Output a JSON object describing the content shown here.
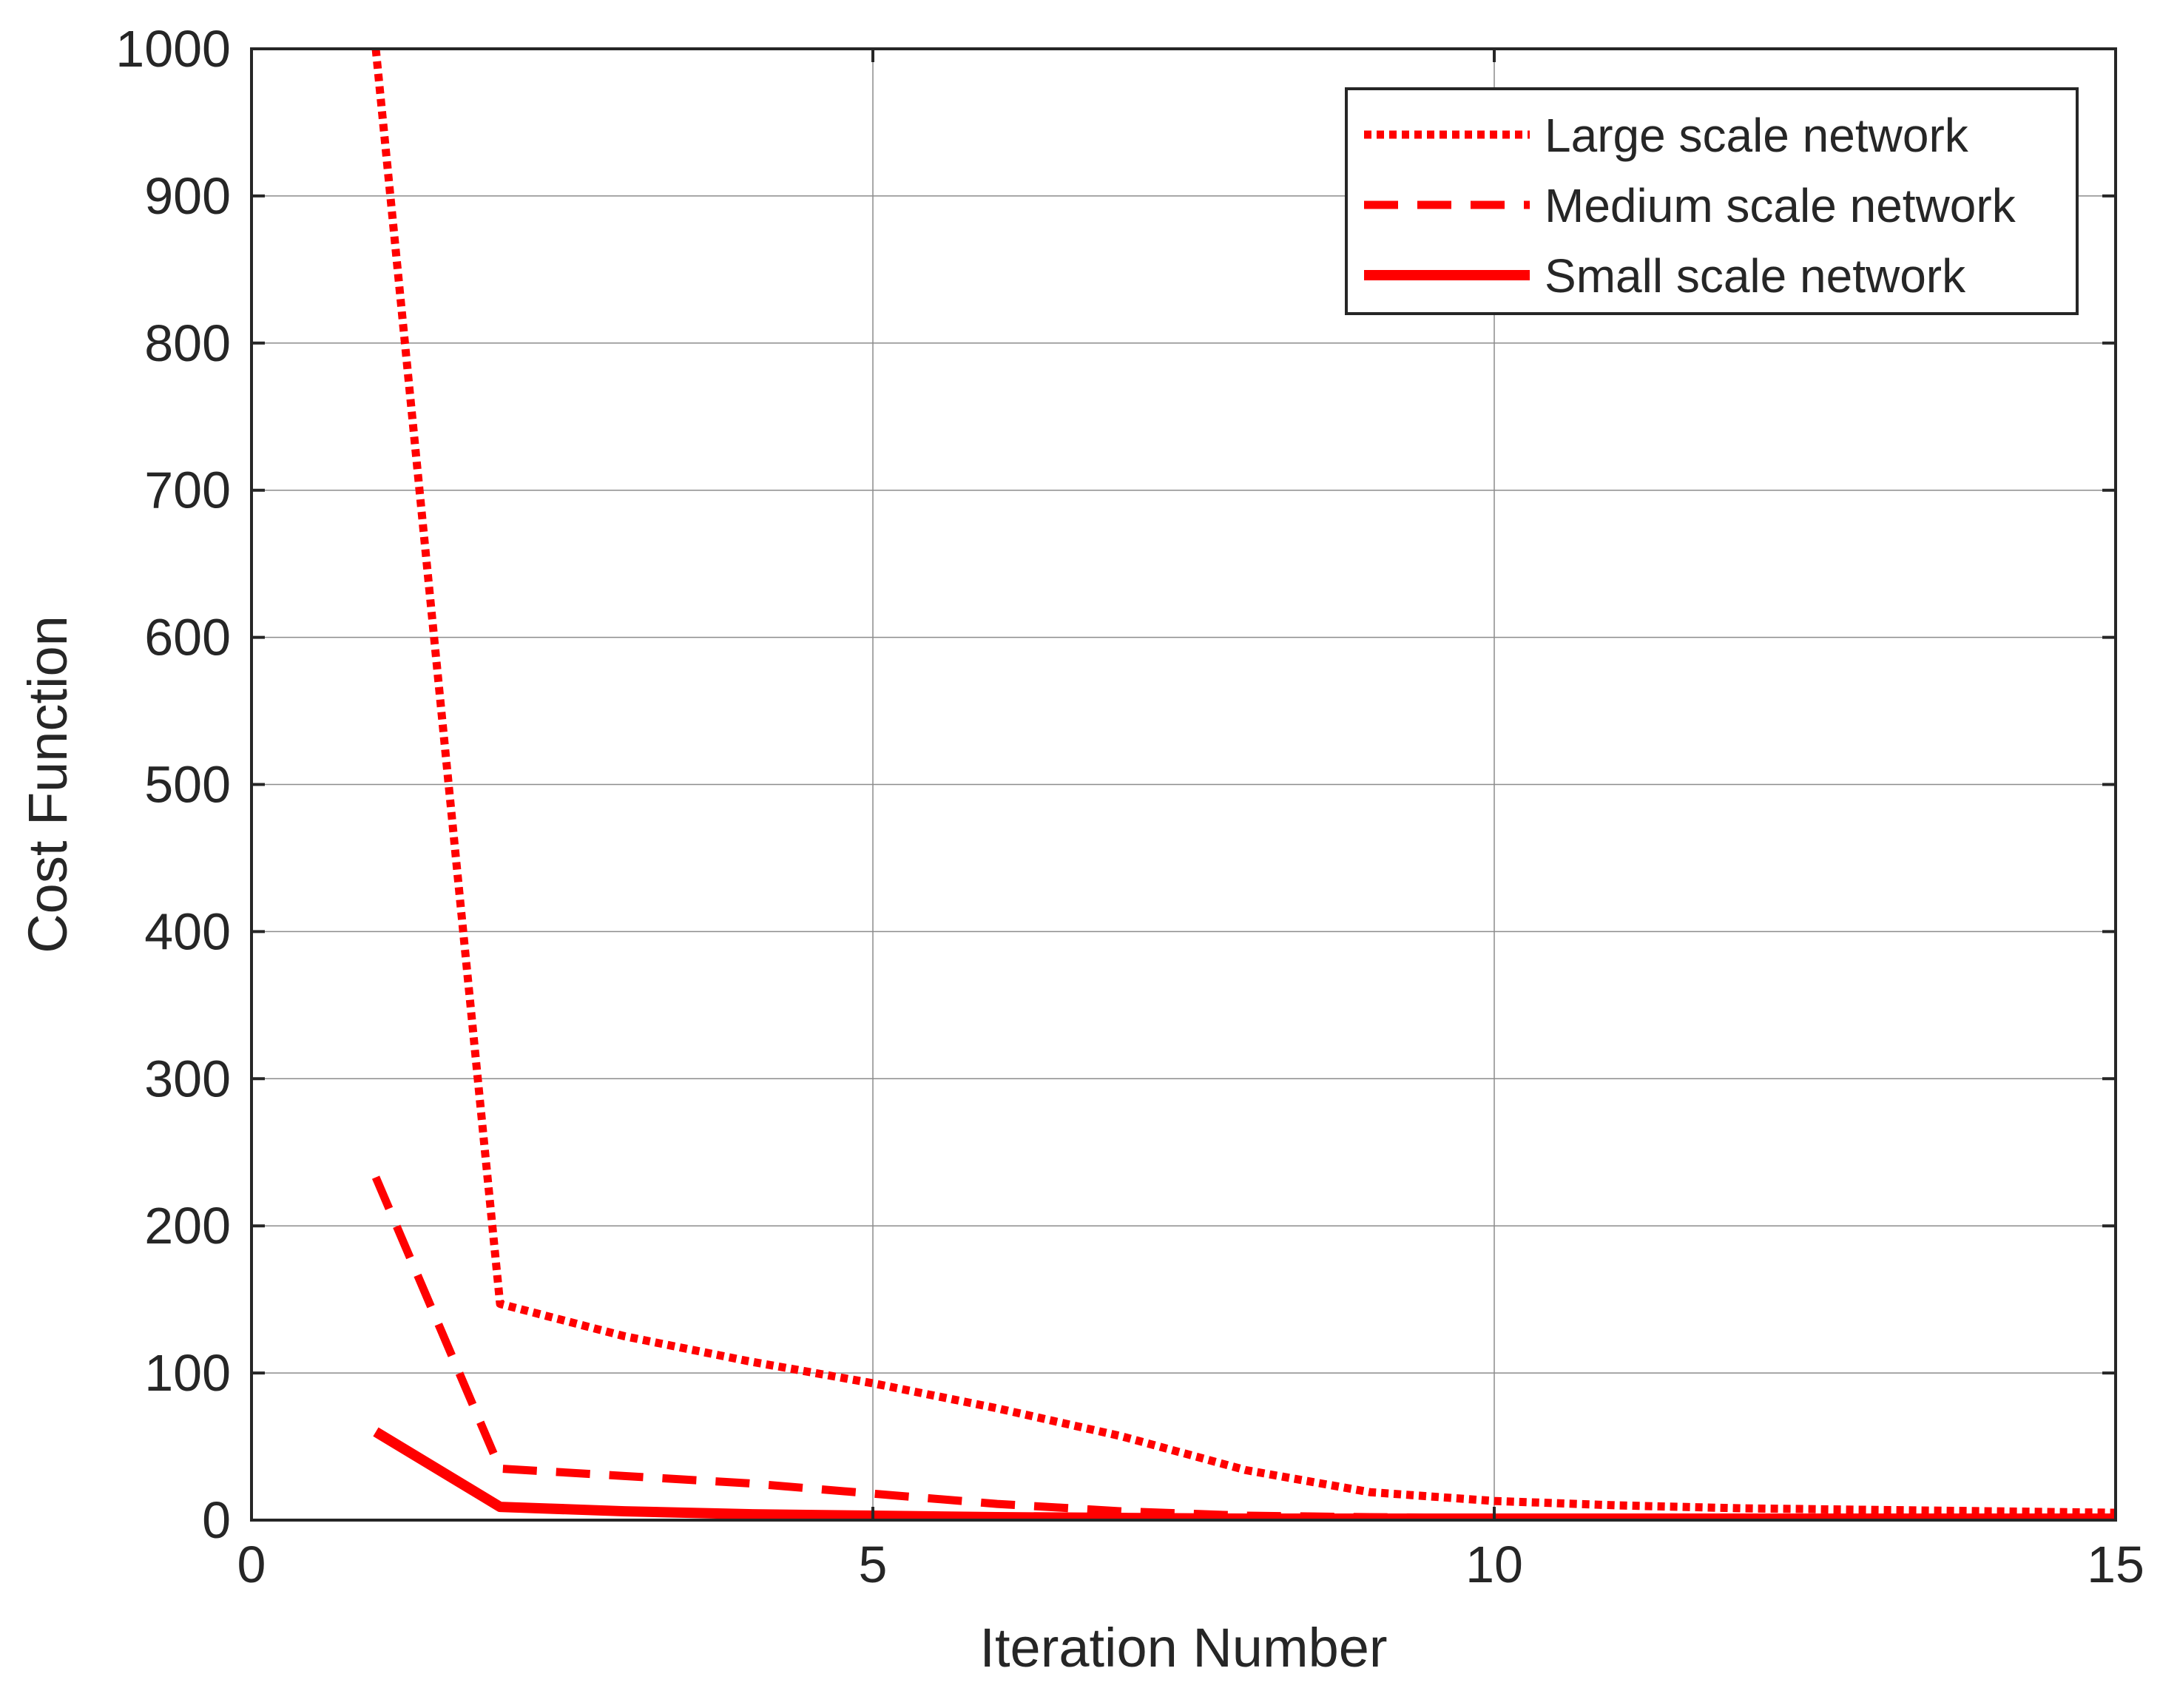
{
  "chart_data": {
    "type": "line",
    "title": "",
    "xlabel": "Iteration Number",
    "ylabel": "Cost Function",
    "xlim": [
      0,
      15
    ],
    "ylim": [
      0,
      1000
    ],
    "xticks": [
      0,
      5,
      10,
      15
    ],
    "yticks": [
      0,
      100,
      200,
      300,
      400,
      500,
      600,
      700,
      800,
      900,
      1000
    ],
    "grid": true,
    "legend_position": "top-right",
    "line_color": "#ff0000",
    "series": [
      {
        "name": "Large scale network",
        "style": "dotted",
        "x": [
          1,
          2,
          3,
          4,
          5,
          6,
          7,
          8,
          9,
          10,
          11,
          12,
          13,
          14,
          15
        ],
        "y": [
          1000,
          147,
          125,
          108,
          93,
          76,
          57,
          34,
          19,
          13,
          10,
          8,
          7,
          6,
          5
        ]
      },
      {
        "name": "Medium scale network",
        "style": "dashed",
        "x": [
          1,
          2,
          3,
          4,
          5,
          6,
          7,
          8,
          9,
          10,
          11,
          12,
          13,
          14,
          15
        ],
        "y": [
          233,
          35,
          30,
          25,
          18,
          11,
          6,
          3,
          2,
          1.5,
          1,
          1,
          1,
          1,
          1
        ]
      },
      {
        "name": "Small scale network",
        "style": "solid",
        "x": [
          1,
          2,
          3,
          4,
          5,
          6,
          7,
          8,
          9,
          10,
          11,
          12,
          13,
          14,
          15
        ],
        "y": [
          60,
          9,
          6,
          4,
          3,
          2,
          1.5,
          1,
          1,
          1,
          1,
          1,
          1,
          1,
          1
        ]
      }
    ]
  }
}
